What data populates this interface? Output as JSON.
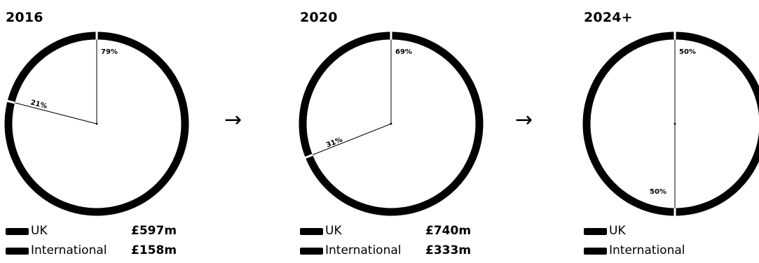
{
  "chart_data": [
    {
      "type": "pie",
      "title": "2016",
      "labels": [
        "UK",
        "International"
      ],
      "values": [
        79,
        21
      ],
      "value_labels": [
        "79%",
        "21%"
      ],
      "legend": [
        {
          "name": "UK",
          "amount": "£597m"
        },
        {
          "name": "International",
          "amount": "£158m"
        }
      ]
    },
    {
      "type": "pie",
      "title": "2020",
      "labels": [
        "UK",
        "International"
      ],
      "values": [
        69,
        31
      ],
      "value_labels": [
        "69%",
        "31%"
      ],
      "legend": [
        {
          "name": "UK",
          "amount": "£740m"
        },
        {
          "name": "International",
          "amount": "£333m"
        }
      ]
    },
    {
      "type": "pie",
      "title": "2024+",
      "labels": [
        "UK",
        "International"
      ],
      "values": [
        50,
        50
      ],
      "value_labels": [
        "50%",
        "50%"
      ],
      "legend": [
        {
          "name": "UK",
          "amount": ""
        },
        {
          "name": "International",
          "amount": ""
        }
      ]
    }
  ],
  "arrows": [
    "→",
    "→"
  ],
  "colors": {
    "ring": "#000000",
    "background": "#ffffff"
  }
}
